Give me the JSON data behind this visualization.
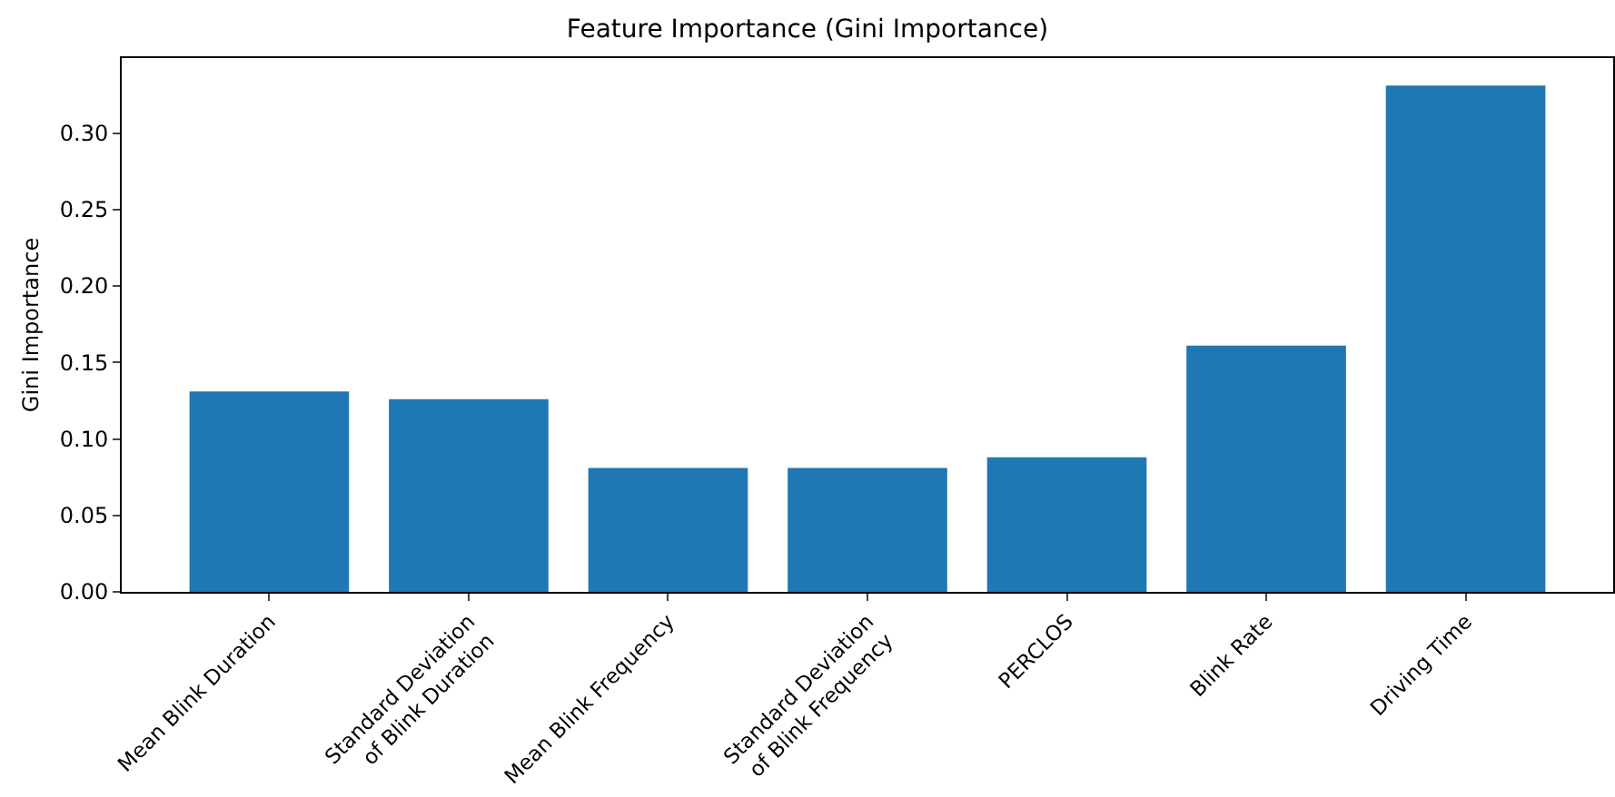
{
  "chart_data": {
    "type": "bar",
    "title": "Feature Importance (Gini Importance)",
    "ylabel": "Gini Importance",
    "categories": [
      "Mean Blink Duration",
      "Standard Deviation\nof Blink Duration",
      "Mean Blink Frequency",
      "Standard Deviation\nof Blink Frequency",
      "PERCLOS",
      "Blink Rate",
      "Driving Time"
    ],
    "values": [
      0.131,
      0.126,
      0.081,
      0.081,
      0.088,
      0.161,
      0.331
    ],
    "color": "#1f77b4",
    "ylim": [
      0,
      0.349
    ],
    "yticks": [
      {
        "value": 0,
        "label": "0.00"
      },
      {
        "value": 0.05,
        "label": "0.05"
      },
      {
        "value": 0.1,
        "label": "0.10"
      },
      {
        "value": 0.15,
        "label": "0.15"
      },
      {
        "value": 0.2,
        "label": "0.20"
      },
      {
        "value": 0.25,
        "label": "0.25"
      },
      {
        "value": 0.3,
        "label": "0.30"
      }
    ],
    "grid": false
  }
}
